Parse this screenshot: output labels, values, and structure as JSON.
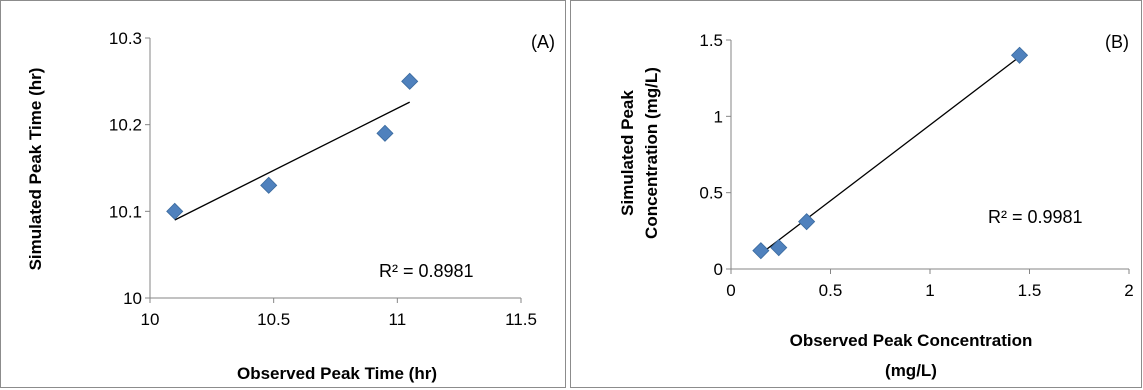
{
  "chart_data": [
    {
      "type": "scatter",
      "panel_label": "(A)",
      "xlabel": "Observed Peak Time (hr)",
      "ylabel": "Simulated Peak Time (hr)",
      "xlim": [
        10,
        11.5
      ],
      "ylim": [
        10,
        10.3
      ],
      "xticks": [
        "10",
        "10.5",
        "11",
        "11.5"
      ],
      "yticks": [
        "10",
        "10.1",
        "10.2",
        "10.3"
      ],
      "points": [
        {
          "x": 10.1,
          "y": 10.1
        },
        {
          "x": 10.48,
          "y": 10.13
        },
        {
          "x": 10.95,
          "y": 10.19
        },
        {
          "x": 11.05,
          "y": 10.25
        }
      ],
      "trendline": [
        [
          10.1,
          10.09
        ],
        [
          11.05,
          10.226
        ]
      ],
      "r2_label": "R² = 0.8981",
      "marker_color": "#4f81bd",
      "grid": false
    },
    {
      "type": "scatter",
      "panel_label": "(B)",
      "xlabel_lines": [
        "Observed Peak Concentration",
        "(mg/L)"
      ],
      "ylabel_lines": [
        "Simulated Peak",
        "Concentration (mg/L)"
      ],
      "xlim": [
        0,
        2
      ],
      "ylim": [
        0,
        1.5
      ],
      "xticks": [
        "0",
        "0.5",
        "1",
        "1.5",
        "2"
      ],
      "yticks": [
        "0",
        "0.5",
        "1",
        "1.5"
      ],
      "points": [
        {
          "x": 0.15,
          "y": 0.12
        },
        {
          "x": 0.24,
          "y": 0.14
        },
        {
          "x": 0.38,
          "y": 0.31
        },
        {
          "x": 1.45,
          "y": 1.4
        }
      ],
      "trendline": [
        [
          0.15,
          0.1
        ],
        [
          1.45,
          1.39
        ]
      ],
      "r2_label": "R² = 0.9981",
      "marker_color": "#4f81bd",
      "grid": false
    }
  ]
}
